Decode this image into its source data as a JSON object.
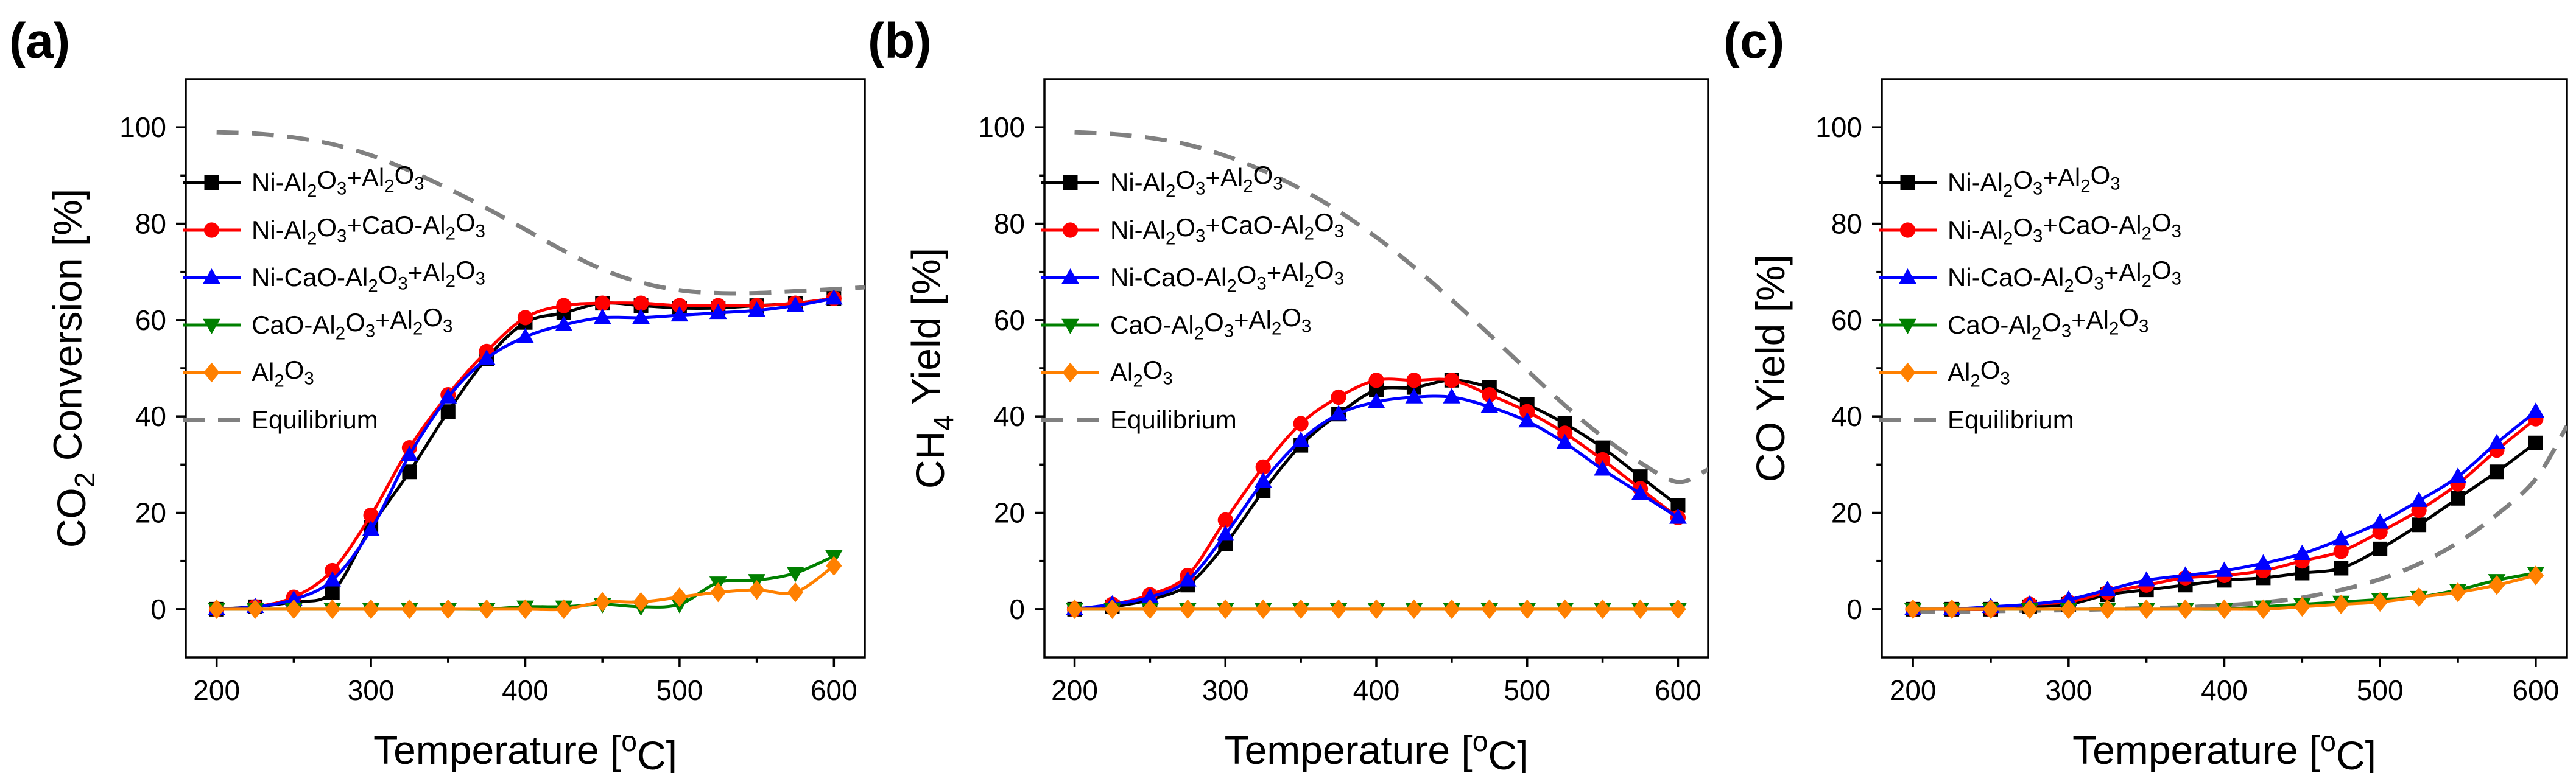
{
  "colors": {
    "ni_al2o3_al2o3": "#000000",
    "ni_al2o3_cao_al2o3": "#ff0000",
    "ni_cao_al2o3_al2o3": "#0000ff",
    "cao_al2o3_al2o3": "#008000",
    "al2o3": "#ff8000",
    "equilibrium": "#808080"
  },
  "chart_data": [
    {
      "type": "line",
      "panel": "(a)",
      "xlabel": "Temperature [oC]",
      "ylabel": "CO2 Conversion [%]",
      "xlim": [
        180,
        620
      ],
      "ylim": [
        -10,
        110
      ],
      "xticks": [
        200,
        300,
        400,
        500,
        600
      ],
      "yticks": [
        0,
        20,
        40,
        60,
        80,
        100
      ],
      "x": [
        200,
        225,
        250,
        275,
        300,
        325,
        350,
        375,
        400,
        425,
        450,
        475,
        500,
        525,
        550,
        575,
        600
      ],
      "legend_position": "upper-left",
      "series": [
        {
          "name": "Ni-Al2O3+Al2O3",
          "marker": "square",
          "color": "#000000",
          "values": [
            0,
            0.5,
            1.5,
            3.5,
            17,
            28.5,
            41,
            52,
            59.5,
            61.5,
            63.5,
            63,
            62.5,
            62.5,
            63,
            63.5,
            64.5
          ]
        },
        {
          "name": "Ni-Al2O3+CaO-Al2O3",
          "marker": "circle",
          "color": "#ff0000",
          "values": [
            0,
            0.5,
            2.5,
            8,
            19.5,
            33.5,
            44.5,
            53.5,
            60.5,
            63,
            63.5,
            63.5,
            63,
            63,
            63,
            63.5,
            64.5
          ]
        },
        {
          "name": "Ni-CaO-Al2O3+Al2O3",
          "marker": "triangle-up",
          "color": "#0000ff",
          "values": [
            0,
            0.5,
            2,
            6,
            16.5,
            32,
            44,
            52,
            56.5,
            59,
            60.5,
            60.5,
            61,
            61.5,
            62,
            63,
            64.5
          ]
        },
        {
          "name": "CaO-Al2O3+Al2O3",
          "marker": "triangle-down",
          "color": "#008000",
          "values": [
            0,
            0,
            0,
            0,
            0,
            0,
            0,
            0,
            0.5,
            0.5,
            1,
            0.5,
            1,
            5.5,
            6,
            7.5,
            11
          ]
        },
        {
          "name": "Al2O3",
          "marker": "diamond",
          "color": "#ff8000",
          "values": [
            0,
            0,
            0,
            0,
            0,
            0,
            0,
            0,
            0,
            0,
            1.5,
            1.5,
            2.5,
            3.5,
            4,
            3.5,
            9
          ]
        }
      ],
      "equilibrium": {
        "name": "Equilibrium",
        "x": [
          200,
          225,
          250,
          275,
          300,
          325,
          350,
          375,
          400,
          425,
          450,
          475,
          500,
          525,
          550,
          575,
          600,
          620
        ],
        "values": [
          99,
          98.7,
          97.9,
          96.5,
          94.2,
          91,
          87.3,
          83.2,
          78.8,
          74.4,
          70.5,
          67.8,
          66.2,
          65.6,
          65.6,
          66,
          66.4,
          66.8
        ]
      }
    },
    {
      "type": "line",
      "panel": "(b)",
      "xlabel": "Temperature [oC]",
      "ylabel": "CH4 Yield [%]",
      "xlim": [
        180,
        620
      ],
      "ylim": [
        -10,
        110
      ],
      "xticks": [
        200,
        300,
        400,
        500,
        600
      ],
      "yticks": [
        0,
        20,
        40,
        60,
        80,
        100
      ],
      "x": [
        200,
        225,
        250,
        275,
        300,
        325,
        350,
        375,
        400,
        425,
        450,
        475,
        500,
        525,
        550,
        575,
        600
      ],
      "legend_position": "upper-left",
      "series": [
        {
          "name": "Ni-Al2O3+Al2O3",
          "marker": "square",
          "color": "#000000",
          "values": [
            0,
            0.5,
            2,
            5,
            13.5,
            24.5,
            34,
            40.5,
            45.5,
            46,
            47.5,
            46,
            42.5,
            38.5,
            33.5,
            27.5,
            21.5
          ]
        },
        {
          "name": "Ni-Al2O3+CaO-Al2O3",
          "marker": "circle",
          "color": "#ff0000",
          "values": [
            0,
            1,
            3,
            7,
            18.5,
            29.5,
            38.5,
            44,
            47.5,
            47.5,
            47.5,
            44.5,
            41,
            36.5,
            31,
            25,
            19
          ]
        },
        {
          "name": "Ni-CaO-Al2O3+Al2O3",
          "marker": "triangle-up",
          "color": "#0000ff",
          "values": [
            0,
            1,
            2.5,
            6,
            15.5,
            26.5,
            35,
            40.5,
            43,
            44,
            44,
            42,
            39,
            34.5,
            29,
            24,
            19
          ]
        },
        {
          "name": "CaO-Al2O3+Al2O3",
          "marker": "triangle-down",
          "color": "#008000",
          "values": [
            0,
            0,
            0,
            0,
            0,
            0,
            0,
            0,
            0,
            0,
            0,
            0,
            0,
            0,
            0,
            0,
            0
          ]
        },
        {
          "name": "Al2O3",
          "marker": "diamond",
          "color": "#ff8000",
          "values": [
            0,
            0,
            0,
            0,
            0,
            0,
            0,
            0,
            0,
            0,
            0,
            0,
            0,
            0,
            0,
            0,
            0
          ]
        }
      ],
      "equilibrium": {
        "name": "Equilibrium",
        "x": [
          200,
          225,
          250,
          275,
          300,
          325,
          350,
          375,
          400,
          425,
          450,
          475,
          500,
          525,
          550,
          575,
          600,
          620
        ],
        "values": [
          99,
          98.6,
          97.8,
          96.4,
          94.1,
          91,
          87.2,
          82.6,
          77.2,
          71,
          64.2,
          57,
          49.6,
          42.3,
          35.8,
          30.4,
          26.4,
          29
        ]
      }
    },
    {
      "type": "line",
      "panel": "(c)",
      "xlabel": "Temperature [oC]",
      "ylabel": "CO Yield [%]",
      "xlim": [
        180,
        620
      ],
      "ylim": [
        -10,
        110
      ],
      "xticks": [
        200,
        300,
        400,
        500,
        600
      ],
      "yticks": [
        0,
        20,
        40,
        60,
        80,
        100
      ],
      "x": [
        200,
        225,
        250,
        275,
        300,
        325,
        350,
        375,
        400,
        425,
        450,
        475,
        500,
        525,
        550,
        575,
        600
      ],
      "legend_position": "upper-left",
      "series": [
        {
          "name": "Ni-Al2O3+Al2O3",
          "marker": "square",
          "color": "#000000",
          "values": [
            0,
            0,
            0,
            0.5,
            1,
            3,
            4,
            5,
            6,
            6.5,
            7.5,
            8.5,
            12.5,
            17.5,
            23,
            28.5,
            34.5
          ]
        },
        {
          "name": "Ni-Al2O3+CaO-Al2O3",
          "marker": "circle",
          "color": "#ff0000",
          "values": [
            0,
            0,
            0,
            1,
            1.5,
            3.5,
            5,
            6.5,
            7,
            8,
            10,
            12,
            16,
            20.5,
            26,
            33,
            39.5
          ]
        },
        {
          "name": "Ni-CaO-Al2O3+Al2O3",
          "marker": "triangle-up",
          "color": "#0000ff",
          "values": [
            0,
            0,
            0.5,
            1,
            2,
            4,
            6,
            7,
            8,
            9.5,
            11.5,
            14.5,
            18,
            22.5,
            27.5,
            34.5,
            41
          ]
        },
        {
          "name": "CaO-Al2O3+Al2O3",
          "marker": "triangle-down",
          "color": "#008000",
          "values": [
            0,
            0,
            0,
            0,
            0,
            0,
            0,
            0,
            0,
            0.5,
            1,
            1.5,
            2,
            2.5,
            4,
            6,
            7.5
          ]
        },
        {
          "name": "Al2O3",
          "marker": "diamond",
          "color": "#ff8000",
          "values": [
            0,
            0,
            0,
            0,
            0,
            0,
            0,
            0,
            0,
            0,
            0.5,
            1,
            1.5,
            2.5,
            3.5,
            5,
            7
          ]
        }
      ],
      "equilibrium": {
        "name": "Equilibrium",
        "x": [
          200,
          225,
          250,
          275,
          300,
          325,
          350,
          375,
          400,
          425,
          450,
          475,
          500,
          525,
          550,
          575,
          600,
          620
        ],
        "values": [
          -0.5,
          -0.5,
          -0.4,
          -0.3,
          -0.2,
          0,
          0.2,
          0.4,
          0.8,
          1.4,
          2.4,
          4,
          6.2,
          9.4,
          13.8,
          19.6,
          27,
          38
        ]
      }
    }
  ]
}
